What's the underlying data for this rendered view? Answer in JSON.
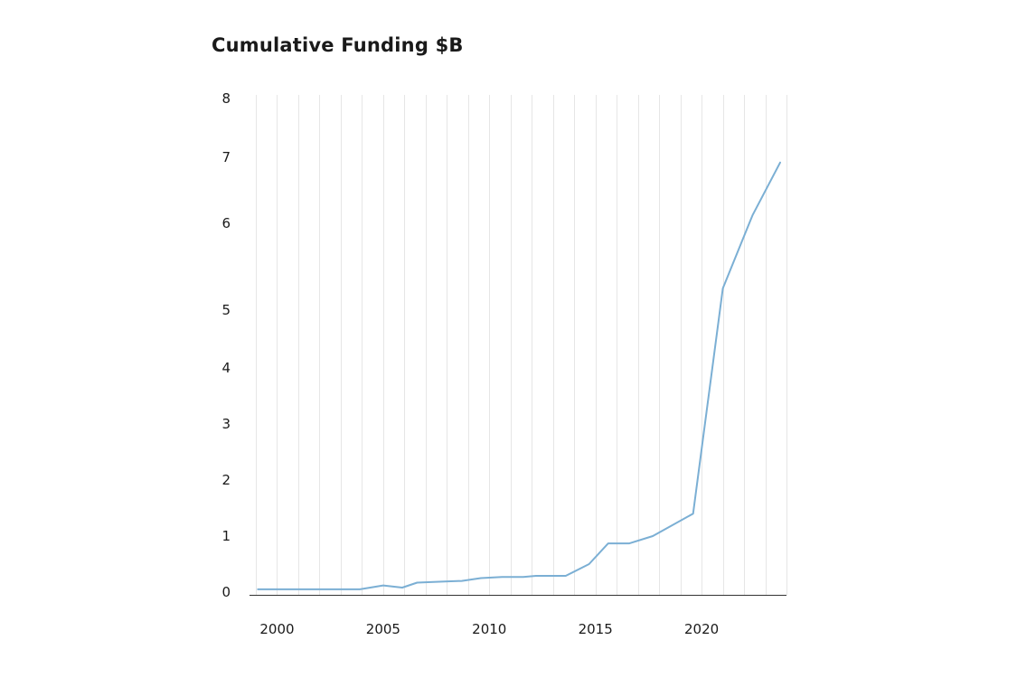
{
  "chart_data": {
    "type": "line",
    "title": "Cumulative Funding $B",
    "xlabel": "",
    "ylabel": "",
    "xlim": [
      1999,
      2024
    ],
    "ylim": [
      0,
      8
    ],
    "x_grid_years": [
      1999,
      2000,
      2001,
      2002,
      2003,
      2004,
      2005,
      2006,
      2007,
      2008,
      2009,
      2010,
      2011,
      2012,
      2013,
      2014,
      2015,
      2016,
      2017,
      2018,
      2019,
      2020,
      2021,
      2022,
      2023,
      2024
    ],
    "x_tick_labels": [
      {
        "value": 2000,
        "label": "2000"
      },
      {
        "value": 2005,
        "label": "2005"
      },
      {
        "value": 2010,
        "label": "2010"
      },
      {
        "value": 2015,
        "label": "2015"
      },
      {
        "value": 2020,
        "label": "2020"
      }
    ],
    "y_ticks": [
      {
        "value": 0,
        "label": "0"
      },
      {
        "value": 1,
        "label": "1"
      },
      {
        "value": 2,
        "label": "2"
      },
      {
        "value": 3,
        "label": "3"
      },
      {
        "value": 4,
        "label": "4"
      },
      {
        "value": 5,
        "label": "5"
      },
      {
        "value": 6,
        "label": "6"
      },
      {
        "value": 7,
        "label": "7"
      },
      {
        "value": 8,
        "label": "8"
      }
    ],
    "grid": {
      "vertical": true,
      "horizontal": false
    },
    "series": [
      {
        "color": "#7bafd4",
        "points": [
          {
            "x": 1999.1,
            "y": 0.05
          },
          {
            "x": 2003.9,
            "y": 0.05
          },
          {
            "x": 2005.0,
            "y": 0.12
          },
          {
            "x": 2005.9,
            "y": 0.08
          },
          {
            "x": 2006.6,
            "y": 0.17
          },
          {
            "x": 2007.9,
            "y": 0.19
          },
          {
            "x": 2008.7,
            "y": 0.2
          },
          {
            "x": 2009.6,
            "y": 0.25
          },
          {
            "x": 2010.6,
            "y": 0.27
          },
          {
            "x": 2011.6,
            "y": 0.27
          },
          {
            "x": 2012.2,
            "y": 0.29
          },
          {
            "x": 2013.6,
            "y": 0.29
          },
          {
            "x": 2014.7,
            "y": 0.5
          },
          {
            "x": 2015.6,
            "y": 0.87
          },
          {
            "x": 2016.6,
            "y": 0.87
          },
          {
            "x": 2017.7,
            "y": 1.0
          },
          {
            "x": 2019.6,
            "y": 1.4
          },
          {
            "x": 2021.0,
            "y": 5.25
          },
          {
            "x": 2022.4,
            "y": 6.12
          },
          {
            "x": 2023.7,
            "y": 6.92
          }
        ]
      }
    ]
  }
}
